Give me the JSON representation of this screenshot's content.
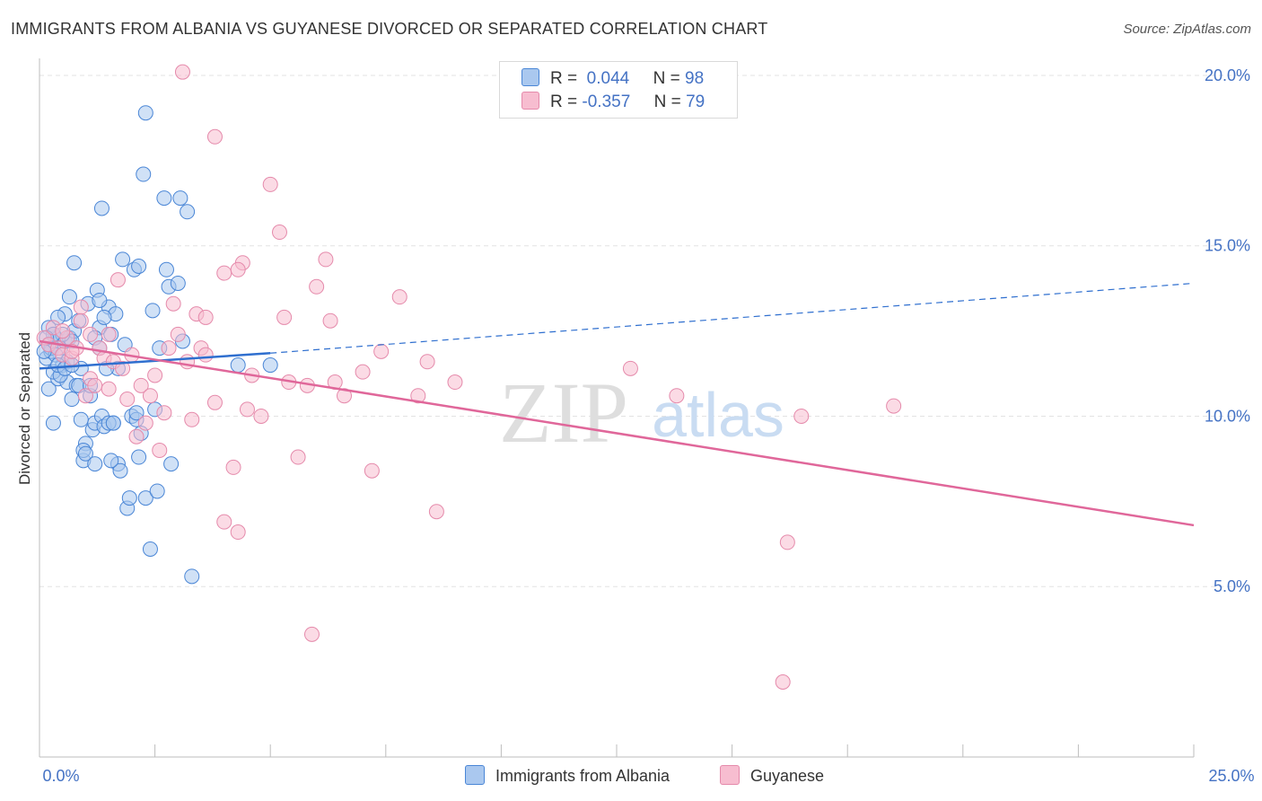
{
  "title": "IMMIGRANTS FROM ALBANIA VS GUYANESE DIVORCED OR SEPARATED CORRELATION CHART",
  "source": "Source: ZipAtlas.com",
  "watermark": {
    "zip": "ZIP",
    "atlas": "atlas"
  },
  "legend": {
    "rows": [
      {
        "r_label": "R =",
        "r_value": "0.044",
        "n_label": "N =",
        "n_value": "98"
      },
      {
        "r_label": "R =",
        "r_value": "-0.357",
        "n_label": "N =",
        "n_value": "79"
      }
    ]
  },
  "bottom_legend": [
    "Immigrants from Albania",
    "Guyanese"
  ],
  "colors": {
    "albania_fill": "#aac8ef",
    "albania_stroke": "#4a86d6",
    "albania_line": "#2f6fcf",
    "guyanese_fill": "#f7bdd0",
    "guyanese_stroke": "#e58aab",
    "guyanese_line": "#e0679a",
    "tick_label": "#4472c4",
    "grid": "#e3e3e3"
  },
  "chart_data": {
    "type": "scatter",
    "title": "IMMIGRANTS FROM ALBANIA VS GUYANESE DIVORCED OR SEPARATED CORRELATION CHART",
    "xlabel": "",
    "ylabel": "Divorced or Separated",
    "xlim": [
      0,
      25
    ],
    "ylim": [
      0,
      20.5
    ],
    "x_tick_labels": [
      "0.0%",
      "25.0%"
    ],
    "y_ticks": [
      5,
      10,
      15,
      20
    ],
    "y_tick_labels": [
      "5.0%",
      "10.0%",
      "15.0%",
      "20.0%"
    ],
    "grid": true,
    "legend_position": "top-center",
    "series": [
      {
        "name": "Immigrants from Albania",
        "r": 0.044,
        "n": 98,
        "trend": {
          "x": [
            0,
            5,
            25
          ],
          "y": [
            11.4,
            11.85,
            13.9
          ],
          "solid_until": 5
        },
        "points": [
          [
            0.15,
            11.7
          ],
          [
            0.2,
            12.1
          ],
          [
            0.25,
            11.9
          ],
          [
            0.3,
            12.4
          ],
          [
            0.35,
            12.3
          ],
          [
            0.2,
            10.8
          ],
          [
            0.4,
            11.1
          ],
          [
            0.45,
            12.0
          ],
          [
            0.5,
            11.5
          ],
          [
            0.55,
            12.2
          ],
          [
            0.3,
            11.3
          ],
          [
            0.6,
            11.0
          ],
          [
            0.65,
            12.3
          ],
          [
            0.7,
            10.5
          ],
          [
            0.75,
            12.5
          ],
          [
            0.8,
            10.9
          ],
          [
            0.85,
            12.8
          ],
          [
            0.9,
            11.4
          ],
          [
            0.95,
            8.7
          ],
          [
            1.0,
            9.2
          ],
          [
            0.25,
            12.0
          ],
          [
            0.35,
            11.8
          ],
          [
            0.45,
            11.2
          ],
          [
            0.55,
            13.0
          ],
          [
            0.6,
            11.6
          ],
          [
            0.7,
            12.2
          ],
          [
            1.05,
            13.3
          ],
          [
            1.1,
            10.6
          ],
          [
            1.15,
            9.6
          ],
          [
            1.2,
            9.8
          ],
          [
            1.25,
            13.7
          ],
          [
            1.3,
            12.6
          ],
          [
            1.35,
            10.0
          ],
          [
            1.4,
            9.7
          ],
          [
            1.5,
            13.2
          ],
          [
            1.55,
            12.4
          ],
          [
            1.6,
            9.8
          ],
          [
            1.65,
            13.0
          ],
          [
            1.7,
            11.4
          ],
          [
            1.8,
            14.6
          ],
          [
            1.85,
            12.1
          ],
          [
            1.9,
            7.3
          ],
          [
            1.95,
            7.6
          ],
          [
            2.0,
            10.0
          ],
          [
            2.05,
            14.3
          ],
          [
            2.1,
            9.9
          ],
          [
            2.15,
            8.8
          ],
          [
            2.2,
            9.5
          ],
          [
            2.25,
            17.1
          ],
          [
            2.3,
            7.6
          ],
          [
            2.4,
            6.1
          ],
          [
            2.45,
            13.1
          ],
          [
            2.5,
            10.2
          ],
          [
            2.55,
            7.8
          ],
          [
            2.6,
            12.0
          ],
          [
            2.7,
            16.4
          ],
          [
            2.75,
            14.3
          ],
          [
            2.8,
            13.8
          ],
          [
            2.85,
            8.6
          ],
          [
            3.0,
            13.9
          ],
          [
            3.1,
            12.2
          ],
          [
            3.2,
            16.0
          ],
          [
            3.3,
            5.3
          ],
          [
            0.4,
            12.9
          ],
          [
            0.5,
            12.4
          ],
          [
            0.65,
            13.5
          ],
          [
            0.75,
            14.5
          ],
          [
            0.85,
            10.9
          ],
          [
            0.95,
            9.0
          ],
          [
            1.0,
            8.9
          ],
          [
            1.2,
            8.6
          ],
          [
            1.3,
            13.4
          ],
          [
            1.4,
            12.9
          ],
          [
            1.5,
            9.8
          ],
          [
            1.6,
            9.8
          ],
          [
            1.7,
            8.6
          ],
          [
            1.75,
            8.4
          ],
          [
            1.2,
            12.3
          ],
          [
            0.3,
            9.8
          ],
          [
            0.4,
            11.5
          ],
          [
            0.55,
            11.4
          ],
          [
            0.7,
            11.5
          ],
          [
            0.9,
            9.9
          ],
          [
            1.1,
            10.9
          ],
          [
            1.3,
            12.0
          ],
          [
            1.45,
            11.4
          ],
          [
            1.55,
            8.7
          ],
          [
            2.1,
            10.1
          ],
          [
            2.3,
            18.9
          ],
          [
            1.35,
            16.1
          ],
          [
            2.15,
            14.4
          ],
          [
            3.05,
            16.4
          ],
          [
            4.3,
            11.5
          ],
          [
            5.0,
            11.5
          ],
          [
            0.2,
            12.6
          ],
          [
            0.3,
            12.4
          ],
          [
            0.1,
            11.9
          ],
          [
            0.15,
            12.3
          ]
        ]
      },
      {
        "name": "Guyanese",
        "r": -0.357,
        "n": 79,
        "trend": {
          "x": [
            0,
            25
          ],
          "y": [
            12.2,
            6.8
          ]
        },
        "points": [
          [
            0.1,
            12.3
          ],
          [
            0.2,
            12.1
          ],
          [
            0.3,
            12.6
          ],
          [
            0.4,
            12.0
          ],
          [
            0.5,
            11.8
          ],
          [
            0.6,
            12.3
          ],
          [
            0.7,
            11.7
          ],
          [
            0.8,
            12.0
          ],
          [
            0.9,
            13.2
          ],
          [
            1.0,
            10.6
          ],
          [
            1.1,
            11.1
          ],
          [
            1.2,
            10.9
          ],
          [
            1.3,
            12.0
          ],
          [
            1.4,
            11.7
          ],
          [
            1.5,
            12.4
          ],
          [
            1.6,
            11.6
          ],
          [
            1.7,
            14.0
          ],
          [
            1.8,
            11.4
          ],
          [
            1.9,
            10.5
          ],
          [
            2.0,
            11.8
          ],
          [
            2.2,
            10.9
          ],
          [
            2.3,
            9.8
          ],
          [
            2.5,
            11.2
          ],
          [
            2.6,
            9.0
          ],
          [
            2.7,
            10.1
          ],
          [
            2.8,
            12.0
          ],
          [
            3.0,
            12.4
          ],
          [
            3.2,
            11.6
          ],
          [
            3.4,
            13.0
          ],
          [
            3.5,
            12.0
          ],
          [
            3.6,
            11.8
          ],
          [
            3.8,
            10.4
          ],
          [
            4.0,
            14.2
          ],
          [
            4.2,
            8.5
          ],
          [
            4.4,
            14.5
          ],
          [
            4.6,
            11.2
          ],
          [
            4.8,
            10.0
          ],
          [
            5.0,
            16.8
          ],
          [
            5.2,
            15.4
          ],
          [
            5.4,
            11.0
          ],
          [
            5.6,
            8.8
          ],
          [
            5.8,
            10.9
          ],
          [
            6.0,
            13.8
          ],
          [
            6.2,
            14.6
          ],
          [
            6.4,
            11.0
          ],
          [
            6.6,
            10.6
          ],
          [
            7.0,
            11.3
          ],
          [
            7.4,
            11.9
          ],
          [
            7.8,
            13.5
          ],
          [
            8.2,
            10.6
          ],
          [
            8.6,
            7.2
          ],
          [
            9.0,
            11.0
          ],
          [
            3.8,
            18.2
          ],
          [
            3.1,
            20.1
          ],
          [
            4.3,
            6.6
          ],
          [
            5.9,
            3.6
          ],
          [
            8.4,
            11.6
          ],
          [
            12.8,
            11.4
          ],
          [
            13.8,
            10.6
          ],
          [
            16.5,
            10.0
          ],
          [
            18.5,
            10.3
          ],
          [
            16.2,
            6.3
          ],
          [
            16.1,
            2.2
          ],
          [
            4.0,
            6.9
          ],
          [
            7.2,
            8.4
          ],
          [
            2.9,
            13.3
          ],
          [
            3.3,
            9.9
          ],
          [
            3.6,
            12.9
          ],
          [
            2.1,
            9.4
          ],
          [
            1.5,
            10.8
          ],
          [
            0.5,
            12.5
          ],
          [
            0.7,
            11.9
          ],
          [
            0.9,
            12.8
          ],
          [
            1.1,
            12.4
          ],
          [
            2.4,
            10.6
          ],
          [
            4.3,
            14.3
          ],
          [
            5.3,
            12.9
          ],
          [
            4.5,
            10.2
          ],
          [
            6.3,
            12.8
          ]
        ]
      }
    ]
  }
}
